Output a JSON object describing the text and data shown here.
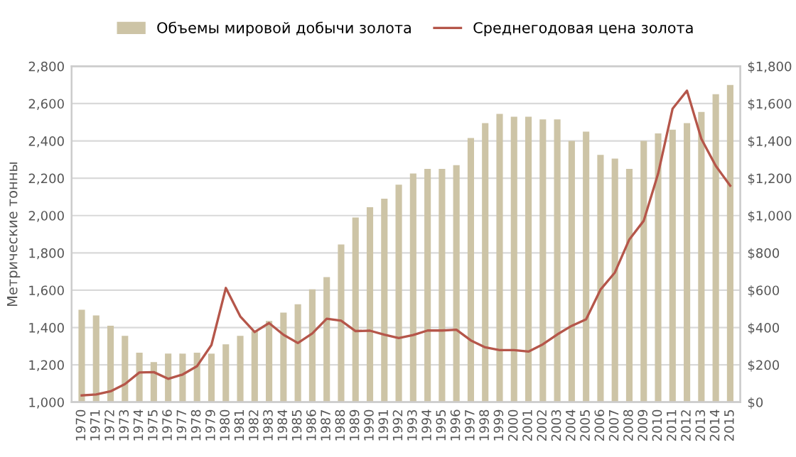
{
  "chart_data": {
    "type": "bar",
    "ylabel": "Метрические тонны",
    "categories": [
      "1970",
      "1971",
      "1972",
      "1973",
      "1974",
      "1975",
      "1976",
      "1977",
      "1978",
      "1979",
      "1980",
      "1981",
      "1982",
      "1983",
      "1984",
      "1985",
      "1986",
      "1987",
      "1988",
      "1989",
      "1990",
      "1991",
      "1992",
      "1993",
      "1994",
      "1995",
      "1996",
      "1997",
      "1998",
      "1999",
      "2000",
      "2001",
      "2002",
      "2003",
      "2004",
      "2005",
      "2006",
      "2007",
      "2008",
      "2009",
      "2010",
      "2011",
      "2012",
      "2013",
      "2014",
      "2015"
    ],
    "series": [
      {
        "name": "Объемы мировой добычи золота",
        "color": "#cdc4a6",
        "values": [
          1495,
          1465,
          1410,
          1355,
          1265,
          1215,
          1260,
          1260,
          1265,
          1260,
          1310,
          1355,
          1380,
          1435,
          1480,
          1525,
          1605,
          1670,
          1845,
          1990,
          2045,
          2090,
          2165,
          2225,
          2250,
          2250,
          2270,
          2415,
          2495,
          2545,
          2530,
          2530,
          2515,
          2515,
          2400,
          2450,
          2325,
          2305,
          2250,
          2400,
          2440,
          2460,
          2495,
          2555,
          2650,
          2700
        ]
      },
      {
        "name": "Среднегодовая цена золота",
        "type": "line",
        "axis": "y2",
        "color": "#b5564a",
        "values": [
          36,
          41,
          58,
          97,
          159,
          161,
          125,
          148,
          193,
          306,
          612,
          460,
          376,
          424,
          361,
          317,
          368,
          447,
          437,
          381,
          383,
          362,
          344,
          360,
          384,
          384,
          388,
          331,
          294,
          279,
          279,
          271,
          310,
          363,
          409,
          444,
          603,
          695,
          872,
          972,
          1225,
          1572,
          1669,
          1411,
          1266,
          1160
        ]
      }
    ],
    "ylim": [
      1000,
      2800
    ],
    "yticks": [
      {
        "value": 1000,
        "label": "1,000"
      },
      {
        "value": 1200,
        "label": "1,200"
      },
      {
        "value": 1400,
        "label": "1,400"
      },
      {
        "value": 1600,
        "label": "1,600"
      },
      {
        "value": 1800,
        "label": "1,800"
      },
      {
        "value": 2000,
        "label": "2,000"
      },
      {
        "value": 2200,
        "label": "2,200"
      },
      {
        "value": 2400,
        "label": "2,400"
      },
      {
        "value": 2600,
        "label": "2,600"
      },
      {
        "value": 2800,
        "label": "2,800"
      }
    ],
    "y2lim": [
      0,
      1800
    ],
    "y2ticks": [
      {
        "value": 0,
        "label": "$0"
      },
      {
        "value": 200,
        "label": "$200"
      },
      {
        "value": 400,
        "label": "$400"
      },
      {
        "value": 600,
        "label": "$600"
      },
      {
        "value": 800,
        "label": "$800"
      },
      {
        "value": 1000,
        "label": "$1,000"
      },
      {
        "value": 1200,
        "label": "$1,200"
      },
      {
        "value": 1400,
        "label": "$1,400"
      },
      {
        "value": 1600,
        "label": "$1,600"
      },
      {
        "value": 1800,
        "label": "$1,800"
      }
    ],
    "grid": "y",
    "legend": "top"
  }
}
